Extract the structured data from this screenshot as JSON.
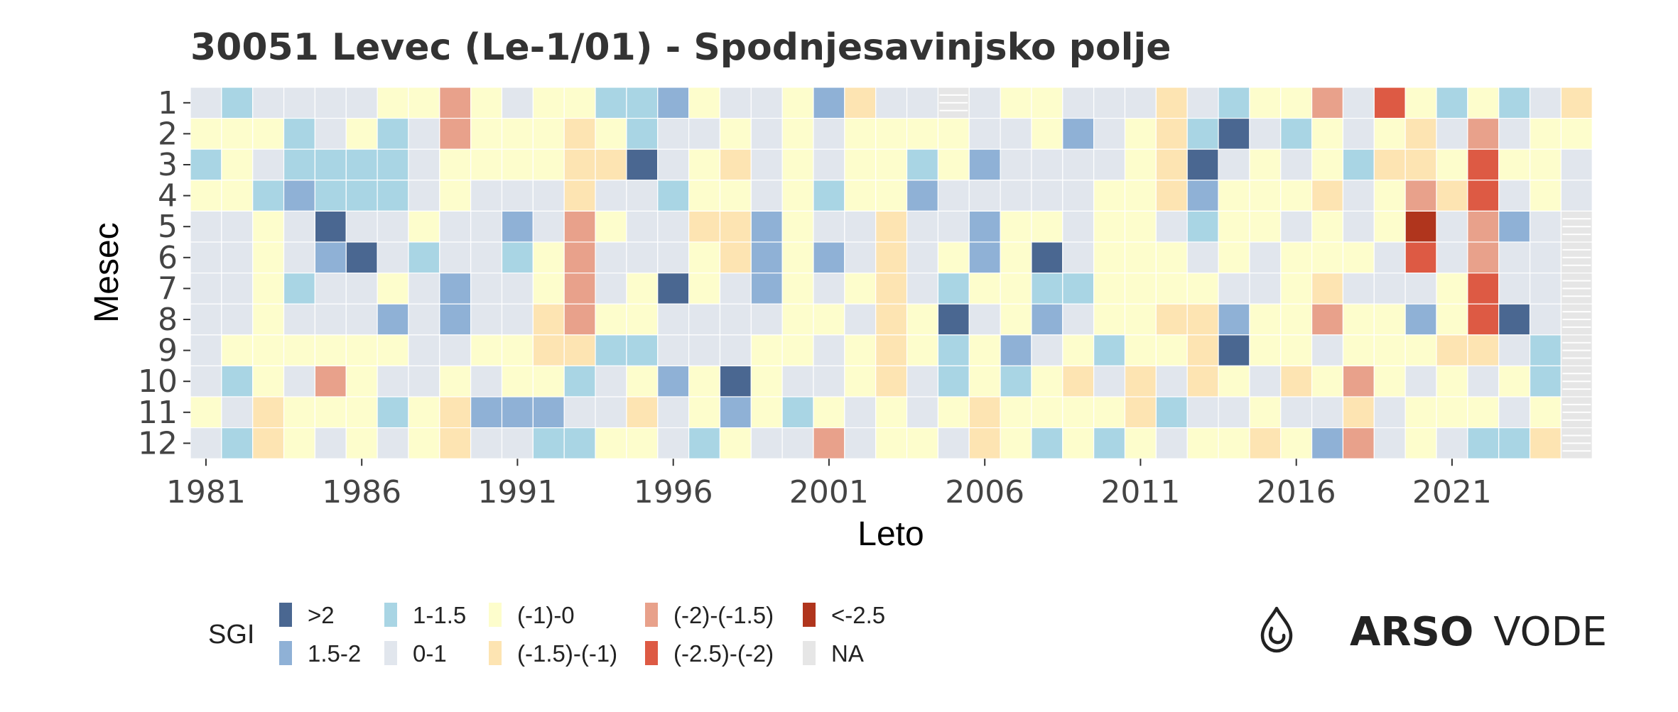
{
  "chart_data": {
    "type": "heatmap",
    "title": "30051 Levec (Le-1/01) - Spodnjesavinjsko polje",
    "xlabel": "Leto",
    "ylabel": "Mesec",
    "x_tick_labels": [
      "1981",
      "1986",
      "1991",
      "1996",
      "2001",
      "2006",
      "2011",
      "2016",
      "2021"
    ],
    "y_tick_labels": [
      "1",
      "2",
      "3",
      "4",
      "5",
      "6",
      "7",
      "8",
      "9",
      "10",
      "11",
      "12"
    ],
    "years": [
      1981,
      1982,
      1983,
      1984,
      1985,
      1986,
      1987,
      1988,
      1989,
      1990,
      1991,
      1992,
      1993,
      1994,
      1995,
      1996,
      1997,
      1998,
      1999,
      2000,
      2001,
      2002,
      2003,
      2004,
      2005,
      2006,
      2007,
      2008,
      2009,
      2010,
      2011,
      2012,
      2013,
      2014,
      2015,
      2016,
      2017,
      2018,
      2019,
      2020,
      2021,
      2022,
      2023,
      2024,
      2025
    ],
    "months": [
      1,
      2,
      3,
      4,
      5,
      6,
      7,
      8,
      9,
      10,
      11,
      12
    ],
    "legend_title": "SGI",
    "legend_placement": "bottom-left",
    "classes": [
      {
        "key": "g2",
        "label": ">2",
        "color": "#4a6791"
      },
      {
        "key": "g15",
        "label": "1.5-2",
        "color": "#8fb1d6"
      },
      {
        "key": "g1",
        "label": "1-1.5",
        "color": "#a9d5e4"
      },
      {
        "key": "g0",
        "label": "0-1",
        "color": "#e1e6ed"
      },
      {
        "key": "n0",
        "label": "(-1)-0",
        "color": "#fdfdcc"
      },
      {
        "key": "n1",
        "label": "(-1.5)-(-1)",
        "color": "#fde4b2"
      },
      {
        "key": "n15",
        "label": "(-2)-(-1.5)",
        "color": "#e8a18b"
      },
      {
        "key": "n2",
        "label": "(-2.5)-(-2)",
        "color": "#dd5a44"
      },
      {
        "key": "n25",
        "label": "<-2.5",
        "color": "#b0351d"
      },
      {
        "key": "na",
        "label": "NA",
        "color": "#e6e6e6"
      }
    ],
    "legend_columns": [
      [
        "g2",
        "g15"
      ],
      [
        "g1",
        "g0"
      ],
      [
        "n0",
        "n1"
      ],
      [
        "n15",
        "n2"
      ],
      [
        "n25",
        "na"
      ]
    ],
    "grid": [
      [
        "g0",
        "g1",
        "g0",
        "g0",
        "g0",
        "g0",
        "n0",
        "n0",
        "n15",
        "n0",
        "g0",
        "n0",
        "n0",
        "g1",
        "g1",
        "g15",
        "n0",
        "g0",
        "g0",
        "n0",
        "g15",
        "n1",
        "g0",
        "g0",
        "na",
        "g0",
        "n0",
        "n0",
        "g0",
        "g0",
        "g0",
        "n1",
        "g0",
        "g1",
        "n0",
        "n0",
        "n15",
        "g0",
        "n2",
        "n0",
        "g1",
        "n0",
        "g1",
        "g0",
        "n1"
      ],
      [
        "n0",
        "n0",
        "n0",
        "g1",
        "g0",
        "n0",
        "g1",
        "g0",
        "n15",
        "n0",
        "n0",
        "n0",
        "n1",
        "n0",
        "g1",
        "g0",
        "g0",
        "n0",
        "g0",
        "n0",
        "g0",
        "n0",
        "n0",
        "n0",
        "n0",
        "g0",
        "g0",
        "n0",
        "g15",
        "g0",
        "n0",
        "n1",
        "g1",
        "g2",
        "g0",
        "g1",
        "n0",
        "g0",
        "n0",
        "n1",
        "g0",
        "n15",
        "g0",
        "n0",
        "n0"
      ],
      [
        "g1",
        "n0",
        "g0",
        "g1",
        "g1",
        "g1",
        "g1",
        "g0",
        "n0",
        "n0",
        "n0",
        "n0",
        "n1",
        "n1",
        "g2",
        "g0",
        "n0",
        "n1",
        "g0",
        "n0",
        "g0",
        "n0",
        "n0",
        "g1",
        "n0",
        "g15",
        "g0",
        "g0",
        "g0",
        "g0",
        "n0",
        "n1",
        "g2",
        "g0",
        "n0",
        "g0",
        "n0",
        "g1",
        "n1",
        "n1",
        "n0",
        "n2",
        "n0",
        "n0",
        "g0"
      ],
      [
        "n0",
        "n0",
        "g1",
        "g15",
        "g1",
        "g1",
        "g1",
        "g0",
        "n0",
        "g0",
        "g0",
        "g0",
        "n1",
        "g0",
        "g0",
        "g1",
        "n0",
        "n0",
        "g0",
        "n0",
        "g1",
        "n0",
        "n0",
        "g15",
        "g0",
        "g0",
        "g0",
        "g0",
        "g0",
        "n0",
        "n0",
        "n1",
        "g15",
        "n0",
        "n0",
        "n0",
        "n1",
        "g0",
        "n0",
        "n15",
        "n1",
        "n2",
        "g0",
        "n0",
        "g0"
      ],
      [
        "g0",
        "g0",
        "n0",
        "g0",
        "g2",
        "g0",
        "g0",
        "n0",
        "g0",
        "g0",
        "g15",
        "g0",
        "n15",
        "n0",
        "g0",
        "g0",
        "n1",
        "n1",
        "g15",
        "n0",
        "g0",
        "g0",
        "n1",
        "g0",
        "g0",
        "g15",
        "n0",
        "n0",
        "g0",
        "n0",
        "n0",
        "g0",
        "g1",
        "n0",
        "n0",
        "g0",
        "n0",
        "g0",
        "n0",
        "n25",
        "g0",
        "n15",
        "g15",
        "g0",
        "na"
      ],
      [
        "g0",
        "g0",
        "n0",
        "g0",
        "g15",
        "g2",
        "g0",
        "g1",
        "g0",
        "g0",
        "g1",
        "n0",
        "n15",
        "g0",
        "g0",
        "g0",
        "n0",
        "n1",
        "g15",
        "n0",
        "g15",
        "g0",
        "n1",
        "g0",
        "n0",
        "g15",
        "n0",
        "g2",
        "g0",
        "n0",
        "n0",
        "n0",
        "g0",
        "n0",
        "g0",
        "n0",
        "n0",
        "n0",
        "g0",
        "n2",
        "g0",
        "n15",
        "g0",
        "g0",
        "na"
      ],
      [
        "g0",
        "g0",
        "n0",
        "g1",
        "g0",
        "g0",
        "n0",
        "g0",
        "g15",
        "g0",
        "g0",
        "n0",
        "n15",
        "g0",
        "n0",
        "g2",
        "n0",
        "g0",
        "g15",
        "n0",
        "g0",
        "n0",
        "n1",
        "g0",
        "g1",
        "n0",
        "n0",
        "g1",
        "g1",
        "n0",
        "n0",
        "n0",
        "n0",
        "g0",
        "g0",
        "n0",
        "n1",
        "g0",
        "g0",
        "g0",
        "n0",
        "n2",
        "g0",
        "g0",
        "na"
      ],
      [
        "g0",
        "g0",
        "n0",
        "g0",
        "g0",
        "g0",
        "g15",
        "g0",
        "g15",
        "g0",
        "g0",
        "n1",
        "n15",
        "n0",
        "n0",
        "g0",
        "g0",
        "g0",
        "g0",
        "n0",
        "n0",
        "g0",
        "n1",
        "n0",
        "g2",
        "g0",
        "n0",
        "g15",
        "g0",
        "n0",
        "n0",
        "n1",
        "n1",
        "g15",
        "n0",
        "n0",
        "n15",
        "n0",
        "n0",
        "g15",
        "n0",
        "n2",
        "g2",
        "g0",
        "na"
      ],
      [
        "g0",
        "n0",
        "n0",
        "n0",
        "n0",
        "n0",
        "n0",
        "g0",
        "g0",
        "n0",
        "n0",
        "n1",
        "n1",
        "g1",
        "g1",
        "g0",
        "g0",
        "g0",
        "n0",
        "n0",
        "g0",
        "n0",
        "n1",
        "n0",
        "g1",
        "n0",
        "g15",
        "g0",
        "n0",
        "g1",
        "n0",
        "n0",
        "n1",
        "g2",
        "n0",
        "n0",
        "g0",
        "n0",
        "n0",
        "n0",
        "n1",
        "n1",
        "g0",
        "g1",
        "na"
      ],
      [
        "g0",
        "g1",
        "n0",
        "g0",
        "n15",
        "n0",
        "g0",
        "g0",
        "n0",
        "g0",
        "n0",
        "n0",
        "g1",
        "g0",
        "n0",
        "g15",
        "n0",
        "g2",
        "n0",
        "g0",
        "g0",
        "n0",
        "n1",
        "g0",
        "g1",
        "n0",
        "g1",
        "n0",
        "n1",
        "g0",
        "n1",
        "g0",
        "n1",
        "n0",
        "g0",
        "n1",
        "n0",
        "n15",
        "n0",
        "g0",
        "n0",
        "g0",
        "n0",
        "g1",
        "na"
      ],
      [
        "n0",
        "g0",
        "n1",
        "n0",
        "n0",
        "n0",
        "g1",
        "n0",
        "n1",
        "g15",
        "g15",
        "g15",
        "g0",
        "g0",
        "n1",
        "g0",
        "n0",
        "g15",
        "n0",
        "g1",
        "n0",
        "g0",
        "n0",
        "g0",
        "n0",
        "n1",
        "n0",
        "n0",
        "n0",
        "n0",
        "n1",
        "g1",
        "g0",
        "g0",
        "n0",
        "g0",
        "g0",
        "n1",
        "g0",
        "n0",
        "n0",
        "n0",
        "g0",
        "n0",
        "na"
      ],
      [
        "g0",
        "g1",
        "n1",
        "n0",
        "g0",
        "n0",
        "g0",
        "n0",
        "n1",
        "g0",
        "g0",
        "g1",
        "g1",
        "n0",
        "n0",
        "g0",
        "g1",
        "n0",
        "g0",
        "g0",
        "n15",
        "g0",
        "n0",
        "n0",
        "g0",
        "n1",
        "n0",
        "g1",
        "n0",
        "g1",
        "n0",
        "g0",
        "n0",
        "n0",
        "n1",
        "n0",
        "g15",
        "n15",
        "g0",
        "n0",
        "g0",
        "g1",
        "g1",
        "n1",
        "na"
      ]
    ]
  },
  "brand": {
    "icon": "water-drop-icon",
    "name_bold": "ARSO",
    "name_light": "VODE"
  }
}
